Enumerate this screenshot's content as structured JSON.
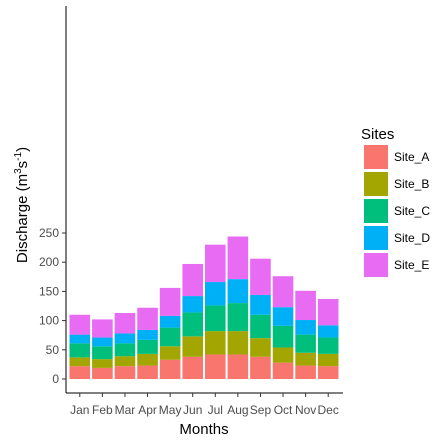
{
  "chart_data": {
    "type": "bar",
    "stacked": true,
    "xlabel": "Months",
    "ylabel_base": "Discharge (m",
    "ylabel_sup1": "3",
    "ylabel_mid": "s",
    "ylabel_sup2": "-1",
    "ylabel_end": ")",
    "categories": [
      "Jan",
      "Feb",
      "Mar",
      "Apr",
      "May",
      "Jun",
      "Jul",
      "Aug",
      "Sep",
      "Oct",
      "Nov",
      "Dec"
    ],
    "ylim": [
      0,
      250
    ],
    "yticks": [
      "0",
      "50",
      "100",
      "150",
      "200",
      "250"
    ],
    "yticks_values": [
      0,
      50,
      100,
      150,
      200,
      250
    ],
    "grid": false,
    "legend": {
      "title": "Sites",
      "position": "right"
    },
    "series": [
      {
        "name": "Site_A",
        "color": "#F8766D",
        "values": [
          22,
          19,
          22,
          23,
          33,
          38,
          42,
          42,
          38,
          28,
          23,
          22
        ]
      },
      {
        "name": "Site_B",
        "color": "#A3A500",
        "values": [
          15,
          15,
          17,
          20,
          23,
          35,
          40,
          40,
          32,
          26,
          22,
          21
        ]
      },
      {
        "name": "Site_C",
        "color": "#00BF7D",
        "values": [
          24,
          22,
          22,
          24,
          32,
          41,
          44,
          48,
          40,
          37,
          31,
          28
        ]
      },
      {
        "name": "Site_D",
        "color": "#00B0F6",
        "values": [
          15,
          15,
          17,
          17,
          20,
          28,
          40,
          41,
          34,
          32,
          25,
          21
        ]
      },
      {
        "name": "Site_E",
        "color": "#E76BF3",
        "values": [
          34,
          31,
          35,
          38,
          48,
          55,
          64,
          73,
          62,
          53,
          50,
          45
        ]
      }
    ]
  }
}
